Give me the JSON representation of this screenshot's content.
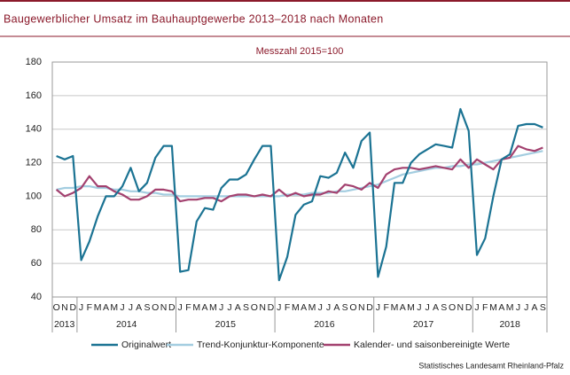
{
  "chart_data": {
    "type": "line",
    "title": "Baugewerblicher Umsatz im Bauhauptgewerbe 2013–2018 nach Monaten",
    "subtitle": "Messzahl 2015=100",
    "source": "Statistisches Landesamt Rheinland-Pfalz",
    "category_groups": [
      {
        "label": "2013",
        "categories": [
          "O",
          "N",
          "D"
        ]
      },
      {
        "label": "2014",
        "categories": [
          "J",
          "F",
          "M",
          "A",
          "M",
          "J",
          "J",
          "A",
          "S",
          "O",
          "N",
          "D"
        ]
      },
      {
        "label": "2015",
        "categories": [
          "J",
          "F",
          "M",
          "A",
          "M",
          "J",
          "J",
          "A",
          "S",
          "O",
          "N",
          "D"
        ]
      },
      {
        "label": "2016",
        "categories": [
          "J",
          "F",
          "M",
          "A",
          "M",
          "J",
          "J",
          "A",
          "S",
          "O",
          "N",
          "D"
        ]
      },
      {
        "label": "2017",
        "categories": [
          "J",
          "F",
          "M",
          "A",
          "M",
          "J",
          "J",
          "A",
          "S",
          "O",
          "N",
          "D"
        ]
      },
      {
        "label": "2018",
        "categories": [
          "J",
          "F",
          "M",
          "A",
          "M",
          "J",
          "J",
          "A",
          "S"
        ]
      }
    ],
    "ylim": [
      40,
      180
    ],
    "yticks": [
      40,
      60,
      80,
      100,
      120,
      140,
      160,
      180
    ],
    "grid": true,
    "series": [
      {
        "name": "Originalwert",
        "color": "#1b7393",
        "values": [
          124,
          122,
          124,
          62,
          73,
          88,
          100,
          100,
          106,
          117,
          103,
          108,
          123,
          130,
          130,
          55,
          56,
          85,
          93,
          92,
          105,
          110,
          110,
          113,
          122,
          130,
          130,
          50,
          64,
          89,
          95,
          97,
          112,
          111,
          114,
          126,
          117,
          133,
          138,
          52,
          70,
          108,
          108,
          120,
          125,
          128,
          131,
          130,
          129,
          152,
          139,
          65,
          75,
          100,
          122,
          125,
          142,
          143,
          143,
          141
        ]
      },
      {
        "name": "Trend-Konjunktur-Komponente",
        "color": "#a3cde0",
        "values": [
          104,
          105,
          105,
          106,
          106,
          105,
          105,
          104,
          104,
          103,
          103,
          102,
          102,
          101,
          101,
          100,
          100,
          100,
          100,
          100,
          100,
          100,
          100,
          100,
          100,
          100,
          100,
          100,
          101,
          101,
          101,
          102,
          102,
          102,
          103,
          103,
          104,
          105,
          106,
          107,
          109,
          111,
          113,
          114,
          115,
          116,
          117,
          117,
          118,
          118,
          119,
          119,
          120,
          121,
          122,
          123,
          124,
          125,
          126,
          127
        ]
      },
      {
        "name": "Kalender- und saisonbereinigte Werte",
        "color": "#a3416f",
        "values": [
          104,
          100,
          102,
          105,
          112,
          106,
          106,
          103,
          101,
          98,
          98,
          100,
          104,
          104,
          103,
          97,
          98,
          98,
          99,
          99,
          97,
          100,
          101,
          101,
          100,
          101,
          100,
          104,
          100,
          102,
          100,
          101,
          101,
          103,
          102,
          107,
          106,
          104,
          108,
          105,
          113,
          116,
          117,
          117,
          116,
          117,
          118,
          117,
          116,
          122,
          117,
          122,
          119,
          116,
          122,
          123,
          130,
          128,
          127,
          129
        ]
      }
    ]
  }
}
